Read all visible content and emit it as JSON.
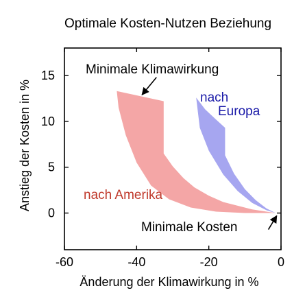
{
  "chart_data": {
    "type": "area",
    "title": "Optimale Kosten-Nutzen Beziehung",
    "xlabel": "Änderung der Klimawirkung in %",
    "ylabel": "Anstieg der Kosten in %",
    "xlim": [
      -60,
      0
    ],
    "ylim": [
      -4,
      18
    ],
    "x_ticks": [
      -60,
      -40,
      -20,
      0
    ],
    "y_ticks": [
      0,
      5,
      10,
      15
    ],
    "grid": false,
    "legend": "none",
    "series": [
      {
        "name": "nach Amerika",
        "color": "#f4a6a6",
        "outline": [
          [
            -45.5,
            13.3
          ],
          [
            -32.5,
            12.2
          ],
          [
            -32.5,
            6.5
          ],
          [
            -30,
            5.1
          ],
          [
            -27,
            3.8
          ],
          [
            -24,
            2.8
          ],
          [
            -20,
            1.9
          ],
          [
            -16,
            1.2
          ],
          [
            -12,
            0.8
          ],
          [
            -8,
            0.4
          ],
          [
            -4,
            0.15
          ],
          [
            -1.5,
            0
          ],
          [
            -10,
            0
          ],
          [
            -18,
            0.15
          ],
          [
            -25,
            0.6
          ],
          [
            -31,
            1.5
          ],
          [
            -36,
            3.0
          ],
          [
            -40,
            5.5
          ],
          [
            -43,
            8.5
          ],
          [
            -45,
            11.5
          ]
        ]
      },
      {
        "name": "nach Europa",
        "color": "#a6a6f0",
        "outline": [
          [
            -23.5,
            12.6
          ],
          [
            -21,
            11.3
          ],
          [
            -18,
            10.2
          ],
          [
            -15.5,
            9.3
          ],
          [
            -15.5,
            6.3
          ],
          [
            -13,
            4.3
          ],
          [
            -10,
            2.6
          ],
          [
            -7,
            1.4
          ],
          [
            -4,
            0.5
          ],
          [
            -1.5,
            0
          ],
          [
            -4,
            0.3
          ],
          [
            -8,
            1.1
          ],
          [
            -12,
            2.4
          ],
          [
            -16,
            4.2
          ],
          [
            -20,
            6.8
          ],
          [
            -22.5,
            9.3
          ]
        ]
      }
    ],
    "annotations": [
      {
        "id": "klima",
        "text": "Minimale Klimawirkung",
        "arrow_from": [
          -34.5,
          14.8
        ],
        "arrow_to": [
          -38.5,
          12.9
        ]
      },
      {
        "id": "europa_line1",
        "text": "nach",
        "color": "#1a1aa8"
      },
      {
        "id": "europa_line2",
        "text": "Europa",
        "color": "#1a1aa8"
      },
      {
        "id": "amerika",
        "text": "nach Amerika",
        "color": "#c0392b"
      },
      {
        "id": "kosten",
        "text": "Minimale Kosten",
        "arrow_from": [
          -3.5,
          -1.8
        ],
        "arrow_to": [
          -1.2,
          -0.3
        ]
      }
    ]
  }
}
